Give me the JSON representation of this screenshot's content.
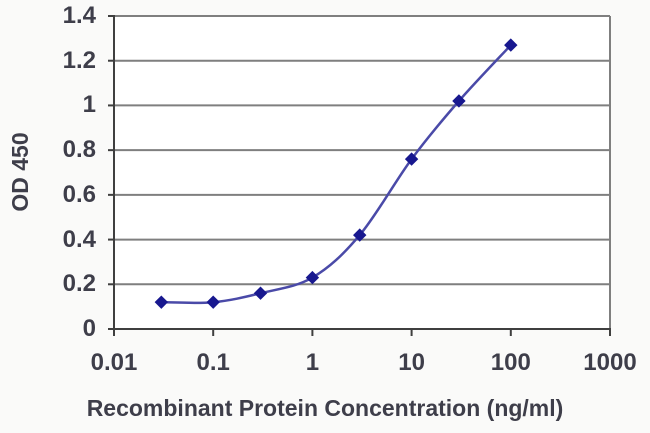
{
  "chart_data": {
    "type": "line",
    "title": "",
    "xlabel": "Recombinant Protein Concentration (ng/ml)",
    "ylabel": "OD 450",
    "x_scale": "log",
    "xlim": [
      0.01,
      1000
    ],
    "ylim": [
      0,
      1.4
    ],
    "x_ticks": [
      0.01,
      0.1,
      1,
      10,
      100,
      1000
    ],
    "x_tick_labels": [
      "0.01",
      "0.1",
      "1",
      "10",
      "100",
      "1000"
    ],
    "y_ticks": [
      0,
      0.2,
      0.4,
      0.6,
      0.8,
      1,
      1.2,
      1.4
    ],
    "y_tick_labels": [
      "0",
      "0.2",
      "0.4",
      "0.6",
      "0.8",
      "1",
      "1.2",
      "1.4"
    ],
    "grid": "horizontal",
    "legend": "none",
    "series": [
      {
        "name": "OD 450",
        "x": [
          0.03,
          0.1,
          0.3,
          1,
          3,
          10,
          30,
          100
        ],
        "y": [
          0.12,
          0.12,
          0.16,
          0.23,
          0.42,
          0.76,
          1.02,
          1.27
        ],
        "marker": "diamond",
        "line_style": "smooth"
      }
    ],
    "colors": {
      "line": "#4A4AA8",
      "marker": "#18188F",
      "gridline": "#7F7F7F",
      "axis": "#3F3F3F",
      "text": "#3E3E4A",
      "plot_bg": "#FFFFFF",
      "page_bg": "#FAFAF9"
    }
  }
}
